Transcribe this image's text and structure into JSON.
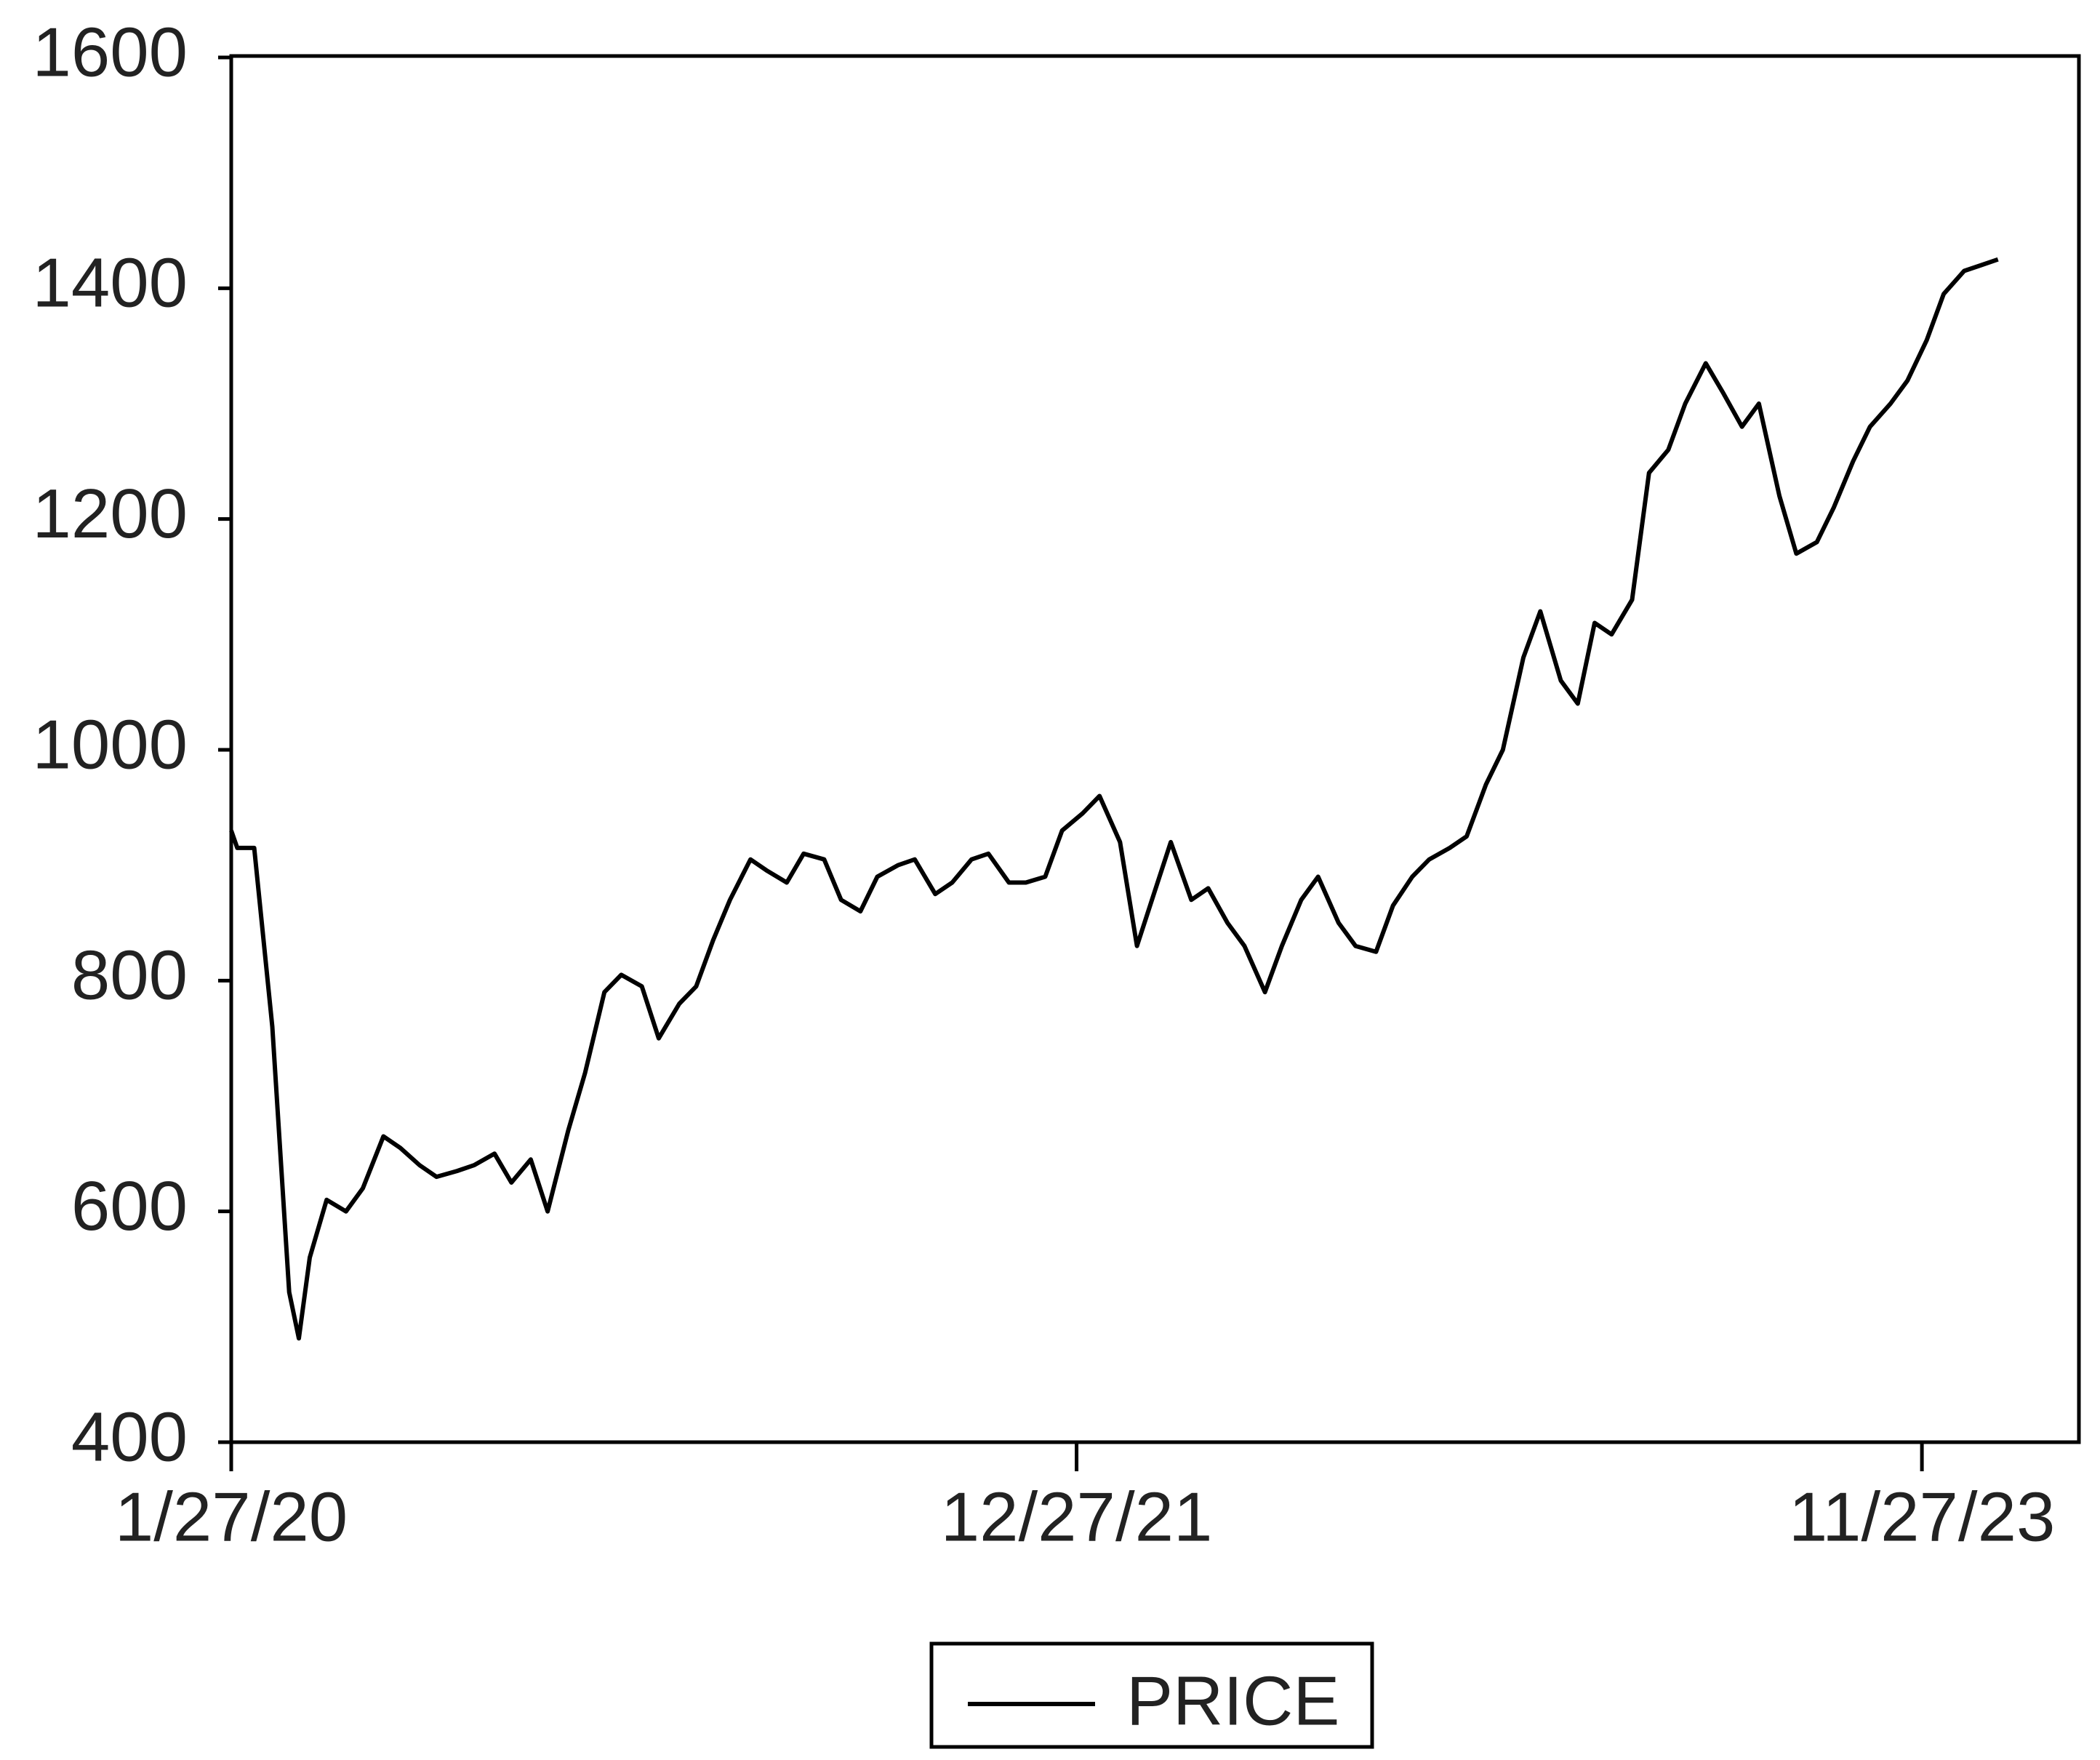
{
  "chart_data": {
    "type": "line",
    "x": [
      "1/27/20",
      "2/1/20",
      "2/15/20",
      "3/1/20",
      "3/15/20",
      "3/23/20",
      "4/1/20",
      "4/15/20",
      "5/1/20",
      "5/15/20",
      "6/1/20",
      "6/15/20",
      "7/1/20",
      "7/15/20",
      "8/1/20",
      "8/15/20",
      "9/1/20",
      "9/15/20",
      "10/1/20",
      "10/15/20",
      "11/1/20",
      "11/15/20",
      "12/1/20",
      "12/15/20",
      "1/1/21",
      "1/15/21",
      "2/1/21",
      "2/15/21",
      "3/1/21",
      "3/15/21",
      "4/1/21",
      "4/15/21",
      "5/1/21",
      "5/15/21",
      "6/1/21",
      "6/15/21",
      "7/1/21",
      "7/15/21",
      "8/1/21",
      "8/15/21",
      "9/1/21",
      "9/15/21",
      "10/1/21",
      "10/15/21",
      "11/1/21",
      "11/15/21",
      "12/1/21",
      "12/15/21",
      "1/1/22",
      "1/15/22",
      "2/1/22",
      "2/15/22",
      "3/1/22",
      "3/15/22",
      "4/1/22",
      "4/15/22",
      "5/1/22",
      "5/15/22",
      "6/1/22",
      "6/15/22",
      "7/1/22",
      "7/15/22",
      "8/1/22",
      "8/15/22",
      "9/1/22",
      "9/15/22",
      "10/1/22",
      "10/15/22",
      "11/1/22",
      "11/15/22",
      "12/1/22",
      "12/15/22",
      "1/1/23",
      "1/15/23",
      "2/1/23",
      "2/15/23",
      "3/1/23",
      "3/15/23",
      "4/1/23",
      "4/15/23",
      "5/1/23",
      "5/15/23",
      "6/1/23",
      "6/15/23",
      "7/1/23",
      "7/15/23",
      "8/1/23",
      "8/15/23",
      "9/1/23",
      "9/15/23",
      "10/1/23",
      "10/15/23",
      "11/1/23",
      "11/15/23",
      "12/1/23",
      "12/15/23",
      "1/1/24",
      "1/15/24",
      "1/29/24"
    ],
    "series": [
      {
        "name": "PRICE",
        "color": "#000000",
        "values": [
          930,
          915,
          915,
          760,
          530,
          490,
          560,
          610,
          600,
          620,
          665,
          655,
          640,
          630,
          635,
          640,
          650,
          625,
          645,
          600,
          670,
          720,
          790,
          805,
          795,
          750,
          780,
          795,
          835,
          870,
          905,
          895,
          885,
          910,
          905,
          870,
          860,
          890,
          900,
          905,
          875,
          885,
          905,
          910,
          885,
          885,
          890,
          930,
          945,
          960,
          920,
          830,
          875,
          920,
          870,
          880,
          850,
          830,
          790,
          830,
          870,
          890,
          850,
          830,
          825,
          865,
          890,
          905,
          915,
          925,
          970,
          1000,
          1080,
          1120,
          1060,
          1040,
          1110,
          1100,
          1130,
          1240,
          1260,
          1300,
          1335,
          1310,
          1280,
          1300,
          1220,
          1170,
          1180,
          1210,
          1250,
          1280,
          1300,
          1320,
          1355,
          1395,
          1415,
          1420,
          1425
        ]
      }
    ],
    "xlim": [
      "1/27/20",
      "4/5/24"
    ],
    "xticks": [
      "1/27/20",
      "12/27/21",
      "11/27/23"
    ],
    "ylim": [
      400,
      1600
    ],
    "yticks": [
      400,
      600,
      800,
      1000,
      1200,
      1400,
      1600
    ],
    "grid": false,
    "legend": "bottom"
  }
}
